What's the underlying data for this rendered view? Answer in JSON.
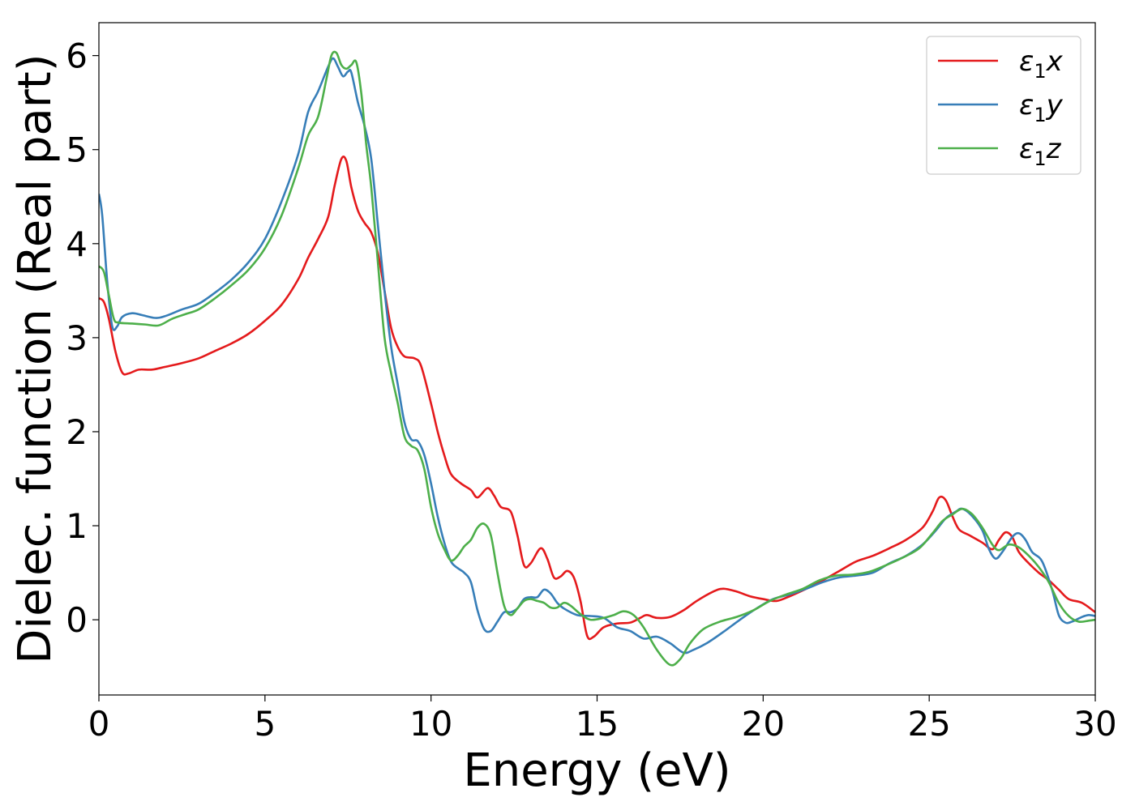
{
  "chart_data": {
    "type": "line",
    "title": "",
    "xlabel": "Energy (eV)",
    "ylabel": "Dielec. function (Real part)",
    "xlim": [
      0,
      30
    ],
    "ylim": [
      -0.8,
      6.35
    ],
    "xticks": [
      0,
      5,
      10,
      15,
      20,
      25,
      30
    ],
    "yticks": [
      0,
      1,
      2,
      3,
      4,
      5,
      6
    ],
    "grid": false,
    "legend_position": "top-right",
    "series": [
      {
        "name": "ε1x",
        "label_main": "ε",
        "label_sub": "1",
        "label_var": "x",
        "color": "#e41a1c",
        "points": [
          [
            0,
            3.42
          ],
          [
            0.15,
            3.38
          ],
          [
            0.3,
            3.2
          ],
          [
            0.5,
            2.85
          ],
          [
            0.7,
            2.63
          ],
          [
            0.9,
            2.62
          ],
          [
            1.2,
            2.66
          ],
          [
            1.6,
            2.66
          ],
          [
            2,
            2.69
          ],
          [
            2.5,
            2.73
          ],
          [
            3,
            2.78
          ],
          [
            3.5,
            2.86
          ],
          [
            4,
            2.94
          ],
          [
            4.5,
            3.04
          ],
          [
            5,
            3.18
          ],
          [
            5.5,
            3.35
          ],
          [
            6,
            3.62
          ],
          [
            6.3,
            3.85
          ],
          [
            6.6,
            4.05
          ],
          [
            6.9,
            4.28
          ],
          [
            7.1,
            4.62
          ],
          [
            7.3,
            4.9
          ],
          [
            7.45,
            4.88
          ],
          [
            7.6,
            4.6
          ],
          [
            7.8,
            4.35
          ],
          [
            8,
            4.22
          ],
          [
            8.2,
            4.12
          ],
          [
            8.4,
            3.9
          ],
          [
            8.6,
            3.5
          ],
          [
            8.8,
            3.1
          ],
          [
            9,
            2.9
          ],
          [
            9.2,
            2.8
          ],
          [
            9.5,
            2.78
          ],
          [
            9.7,
            2.7
          ],
          [
            10,
            2.3
          ],
          [
            10.2,
            2.0
          ],
          [
            10.4,
            1.75
          ],
          [
            10.6,
            1.55
          ],
          [
            10.9,
            1.45
          ],
          [
            11.2,
            1.38
          ],
          [
            11.4,
            1.3
          ],
          [
            11.7,
            1.4
          ],
          [
            11.9,
            1.32
          ],
          [
            12.1,
            1.2
          ],
          [
            12.4,
            1.15
          ],
          [
            12.6,
            0.9
          ],
          [
            12.8,
            0.58
          ],
          [
            13,
            0.6
          ],
          [
            13.3,
            0.76
          ],
          [
            13.5,
            0.65
          ],
          [
            13.7,
            0.45
          ],
          [
            13.9,
            0.46
          ],
          [
            14.1,
            0.52
          ],
          [
            14.3,
            0.45
          ],
          [
            14.5,
            0.2
          ],
          [
            14.7,
            -0.17
          ],
          [
            14.9,
            -0.18
          ],
          [
            15.2,
            -0.08
          ],
          [
            15.6,
            -0.04
          ],
          [
            16,
            -0.03
          ],
          [
            16.3,
            0.02
          ],
          [
            16.5,
            0.05
          ],
          [
            16.8,
            0.02
          ],
          [
            17.2,
            0.03
          ],
          [
            17.6,
            0.1
          ],
          [
            18,
            0.2
          ],
          [
            18.5,
            0.3
          ],
          [
            18.8,
            0.33
          ],
          [
            19.2,
            0.3
          ],
          [
            19.6,
            0.25
          ],
          [
            20,
            0.22
          ],
          [
            20.4,
            0.2
          ],
          [
            20.8,
            0.25
          ],
          [
            21.3,
            0.33
          ],
          [
            21.8,
            0.42
          ],
          [
            22.3,
            0.52
          ],
          [
            22.8,
            0.62
          ],
          [
            23.3,
            0.68
          ],
          [
            23.8,
            0.76
          ],
          [
            24.3,
            0.85
          ],
          [
            24.8,
            0.98
          ],
          [
            25.1,
            1.15
          ],
          [
            25.3,
            1.3
          ],
          [
            25.5,
            1.27
          ],
          [
            25.7,
            1.1
          ],
          [
            25.9,
            0.96
          ],
          [
            26.2,
            0.9
          ],
          [
            26.6,
            0.82
          ],
          [
            26.9,
            0.75
          ],
          [
            27.1,
            0.85
          ],
          [
            27.3,
            0.93
          ],
          [
            27.5,
            0.88
          ],
          [
            27.7,
            0.72
          ],
          [
            28,
            0.6
          ],
          [
            28.3,
            0.5
          ],
          [
            28.6,
            0.42
          ],
          [
            28.9,
            0.32
          ],
          [
            29.2,
            0.22
          ],
          [
            29.6,
            0.18
          ],
          [
            30,
            0.08
          ]
        ]
      },
      {
        "name": "ε1y",
        "label_main": "ε",
        "label_sub": "1",
        "label_var": "y",
        "color": "#377eb8",
        "points": [
          [
            0,
            4.53
          ],
          [
            0.1,
            4.3
          ],
          [
            0.25,
            3.6
          ],
          [
            0.4,
            3.12
          ],
          [
            0.55,
            3.12
          ],
          [
            0.7,
            3.22
          ],
          [
            1,
            3.26
          ],
          [
            1.3,
            3.24
          ],
          [
            1.7,
            3.21
          ],
          [
            2,
            3.23
          ],
          [
            2.5,
            3.3
          ],
          [
            3,
            3.36
          ],
          [
            3.5,
            3.48
          ],
          [
            4,
            3.62
          ],
          [
            4.5,
            3.8
          ],
          [
            5,
            4.05
          ],
          [
            5.5,
            4.45
          ],
          [
            6,
            4.95
          ],
          [
            6.3,
            5.4
          ],
          [
            6.6,
            5.62
          ],
          [
            6.9,
            5.88
          ],
          [
            7.05,
            5.97
          ],
          [
            7.2,
            5.88
          ],
          [
            7.35,
            5.78
          ],
          [
            7.5,
            5.83
          ],
          [
            7.6,
            5.82
          ],
          [
            7.8,
            5.5
          ],
          [
            8,
            5.25
          ],
          [
            8.2,
            4.9
          ],
          [
            8.4,
            4.2
          ],
          [
            8.6,
            3.5
          ],
          [
            8.8,
            2.9
          ],
          [
            9,
            2.5
          ],
          [
            9.2,
            2.1
          ],
          [
            9.4,
            1.92
          ],
          [
            9.6,
            1.9
          ],
          [
            9.8,
            1.75
          ],
          [
            10,
            1.45
          ],
          [
            10.2,
            1.1
          ],
          [
            10.4,
            0.82
          ],
          [
            10.6,
            0.62
          ],
          [
            10.8,
            0.55
          ],
          [
            11,
            0.5
          ],
          [
            11.2,
            0.4
          ],
          [
            11.4,
            0.1
          ],
          [
            11.6,
            -0.1
          ],
          [
            11.8,
            -0.12
          ],
          [
            12,
            -0.02
          ],
          [
            12.2,
            0.08
          ],
          [
            12.4,
            0.08
          ],
          [
            12.6,
            0.12
          ],
          [
            12.8,
            0.22
          ],
          [
            13,
            0.24
          ],
          [
            13.2,
            0.24
          ],
          [
            13.4,
            0.32
          ],
          [
            13.6,
            0.28
          ],
          [
            13.8,
            0.18
          ],
          [
            14,
            0.12
          ],
          [
            14.4,
            0.05
          ],
          [
            14.8,
            0.04
          ],
          [
            15.2,
            0.02
          ],
          [
            15.6,
            -0.08
          ],
          [
            16,
            -0.12
          ],
          [
            16.4,
            -0.2
          ],
          [
            16.8,
            -0.18
          ],
          [
            17.2,
            -0.25
          ],
          [
            17.6,
            -0.35
          ],
          [
            17.9,
            -0.32
          ],
          [
            18.3,
            -0.25
          ],
          [
            18.8,
            -0.13
          ],
          [
            19.3,
            0.0
          ],
          [
            19.8,
            0.12
          ],
          [
            20.3,
            0.22
          ],
          [
            20.8,
            0.27
          ],
          [
            21.3,
            0.33
          ],
          [
            21.8,
            0.4
          ],
          [
            22.3,
            0.45
          ],
          [
            22.8,
            0.47
          ],
          [
            23.3,
            0.5
          ],
          [
            23.8,
            0.6
          ],
          [
            24.3,
            0.68
          ],
          [
            24.8,
            0.8
          ],
          [
            25.2,
            0.95
          ],
          [
            25.5,
            1.08
          ],
          [
            25.8,
            1.15
          ],
          [
            26,
            1.18
          ],
          [
            26.3,
            1.1
          ],
          [
            26.6,
            0.95
          ],
          [
            26.8,
            0.75
          ],
          [
            27,
            0.65
          ],
          [
            27.2,
            0.72
          ],
          [
            27.5,
            0.88
          ],
          [
            27.7,
            0.92
          ],
          [
            27.9,
            0.85
          ],
          [
            28.1,
            0.72
          ],
          [
            28.4,
            0.62
          ],
          [
            28.7,
            0.32
          ],
          [
            28.9,
            0.05
          ],
          [
            29.1,
            -0.03
          ],
          [
            29.3,
            -0.02
          ],
          [
            29.6,
            0.03
          ],
          [
            29.8,
            0.05
          ],
          [
            30,
            0.04
          ]
        ]
      },
      {
        "name": "ε1z",
        "label_main": "ε",
        "label_sub": "1",
        "label_var": "z",
        "color": "#4daf4a",
        "points": [
          [
            0,
            3.76
          ],
          [
            0.15,
            3.7
          ],
          [
            0.3,
            3.45
          ],
          [
            0.45,
            3.2
          ],
          [
            0.6,
            3.16
          ],
          [
            1,
            3.15
          ],
          [
            1.4,
            3.14
          ],
          [
            1.8,
            3.13
          ],
          [
            2.2,
            3.2
          ],
          [
            2.6,
            3.25
          ],
          [
            3,
            3.3
          ],
          [
            3.5,
            3.42
          ],
          [
            4,
            3.56
          ],
          [
            4.5,
            3.72
          ],
          [
            5,
            3.95
          ],
          [
            5.5,
            4.3
          ],
          [
            6,
            4.8
          ],
          [
            6.3,
            5.15
          ],
          [
            6.6,
            5.35
          ],
          [
            6.85,
            5.75
          ],
          [
            7,
            6.0
          ],
          [
            7.15,
            6.03
          ],
          [
            7.3,
            5.9
          ],
          [
            7.45,
            5.86
          ],
          [
            7.6,
            5.9
          ],
          [
            7.75,
            5.93
          ],
          [
            7.9,
            5.6
          ],
          [
            8.05,
            5.05
          ],
          [
            8.2,
            4.6
          ],
          [
            8.4,
            3.8
          ],
          [
            8.6,
            3.0
          ],
          [
            8.8,
            2.62
          ],
          [
            9,
            2.3
          ],
          [
            9.2,
            1.95
          ],
          [
            9.4,
            1.85
          ],
          [
            9.6,
            1.8
          ],
          [
            9.8,
            1.6
          ],
          [
            10,
            1.2
          ],
          [
            10.2,
            0.92
          ],
          [
            10.4,
            0.75
          ],
          [
            10.6,
            0.63
          ],
          [
            10.8,
            0.68
          ],
          [
            11,
            0.78
          ],
          [
            11.2,
            0.85
          ],
          [
            11.4,
            0.98
          ],
          [
            11.6,
            1.02
          ],
          [
            11.8,
            0.9
          ],
          [
            12,
            0.5
          ],
          [
            12.2,
            0.15
          ],
          [
            12.4,
            0.05
          ],
          [
            12.6,
            0.12
          ],
          [
            12.8,
            0.2
          ],
          [
            13,
            0.22
          ],
          [
            13.2,
            0.2
          ],
          [
            13.4,
            0.18
          ],
          [
            13.6,
            0.13
          ],
          [
            13.8,
            0.13
          ],
          [
            14,
            0.18
          ],
          [
            14.2,
            0.15
          ],
          [
            14.5,
            0.06
          ],
          [
            14.8,
            0.0
          ],
          [
            15.2,
            0.02
          ],
          [
            15.5,
            0.05
          ],
          [
            15.8,
            0.09
          ],
          [
            16.1,
            0.05
          ],
          [
            16.4,
            -0.08
          ],
          [
            16.8,
            -0.32
          ],
          [
            17.2,
            -0.48
          ],
          [
            17.5,
            -0.42
          ],
          [
            17.8,
            -0.25
          ],
          [
            18.2,
            -0.1
          ],
          [
            18.7,
            -0.02
          ],
          [
            19.2,
            0.03
          ],
          [
            19.7,
            0.1
          ],
          [
            20.2,
            0.2
          ],
          [
            20.7,
            0.27
          ],
          [
            21.2,
            0.33
          ],
          [
            21.7,
            0.42
          ],
          [
            22.2,
            0.47
          ],
          [
            22.7,
            0.48
          ],
          [
            23.2,
            0.51
          ],
          [
            23.7,
            0.58
          ],
          [
            24.2,
            0.66
          ],
          [
            24.7,
            0.76
          ],
          [
            25.1,
            0.92
          ],
          [
            25.4,
            1.05
          ],
          [
            25.7,
            1.12
          ],
          [
            26,
            1.18
          ],
          [
            26.3,
            1.12
          ],
          [
            26.6,
            0.98
          ],
          [
            26.9,
            0.8
          ],
          [
            27.1,
            0.74
          ],
          [
            27.4,
            0.8
          ],
          [
            27.7,
            0.77
          ],
          [
            28,
            0.68
          ],
          [
            28.3,
            0.56
          ],
          [
            28.6,
            0.4
          ],
          [
            28.9,
            0.18
          ],
          [
            29.2,
            0.04
          ],
          [
            29.5,
            -0.02
          ],
          [
            29.8,
            -0.01
          ],
          [
            30,
            0.0
          ]
        ]
      }
    ]
  }
}
